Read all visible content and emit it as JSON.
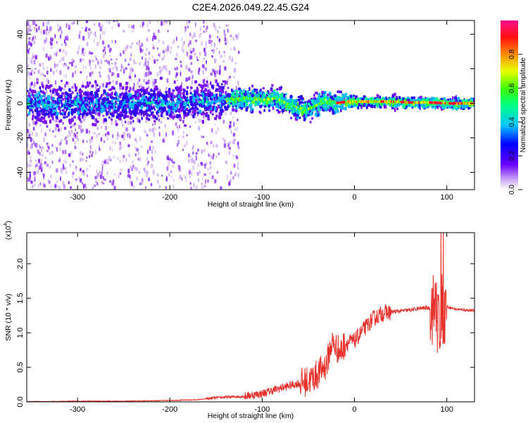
{
  "figure": {
    "title": "C2E4.2026.049.22.45.G24"
  },
  "chart_data": [
    {
      "type": "heatmap",
      "title": "C2E4.2026.049.22.45.G24",
      "xlabel": "Height of straight line (km)",
      "ylabel": "Frequency (Hz)",
      "xlim": [
        -355,
        130
      ],
      "ylim": [
        -50,
        48
      ],
      "xticks": [
        -300,
        -200,
        -100,
        0,
        100
      ],
      "xtick_labels": [
        "-300",
        "-200",
        "-100",
        "0",
        "100"
      ],
      "yticks": [
        -40,
        -20,
        0,
        20,
        40
      ],
      "ytick_labels": [
        "-40",
        "-20",
        "0",
        "20",
        "40"
      ],
      "signal_track": {
        "x": [
          -355,
          -300,
          -250,
          -200,
          -160,
          -140,
          -120,
          -100,
          -85,
          -75,
          -65,
          -55,
          -45,
          -35,
          -25,
          -15,
          -8,
          0,
          20,
          40,
          60,
          80,
          100,
          130
        ],
        "freq": [
          0,
          0,
          0,
          0,
          1,
          2,
          3,
          2,
          3,
          0,
          -2,
          -4,
          -2,
          1,
          0,
          0.5,
          1,
          1,
          1,
          1,
          0.5,
          0.5,
          0,
          0
        ]
      },
      "colorbar": {
        "label": "Normalized spectral amplitude",
        "range": [
          0,
          1
        ],
        "ticks": [
          0.0,
          0.2,
          0.4,
          0.6,
          0.8
        ],
        "tick_labels": [
          "0.0",
          "0.2",
          "0.4",
          "0.6",
          "0.8"
        ]
      }
    },
    {
      "type": "line",
      "xlabel": "Height of straight line (km)",
      "ylabel": "SNR (10 * v/v)",
      "multiplier_label": "(x10",
      "multiplier_exponent": "4",
      "multiplier_close": ")",
      "xlim": [
        -355,
        130
      ],
      "ylim": [
        0,
        2.45
      ],
      "xticks": [
        -300,
        -200,
        -100,
        0,
        100
      ],
      "xtick_labels": [
        "-300",
        "-200",
        "-100",
        "0",
        "100"
      ],
      "yticks": [
        0.0,
        0.5,
        1.0,
        1.5,
        2.0
      ],
      "ytick_labels": [
        "0.0",
        "0.5",
        "1.0",
        "1.5",
        "2.0"
      ],
      "series": [
        {
          "name": "SNR",
          "color": "#e8302a",
          "x": [
            -355,
            -300,
            -250,
            -200,
            -170,
            -150,
            -120,
            -100,
            -80,
            -60,
            -50,
            -40,
            -30,
            -25,
            -20,
            -15,
            -10,
            0,
            10,
            20,
            30,
            40,
            60,
            75,
            85,
            90,
            95,
            100,
            110,
            130
          ],
          "y": [
            0.0,
            0.01,
            0.01,
            0.02,
            0.03,
            0.06,
            0.08,
            0.12,
            0.2,
            0.27,
            0.3,
            0.4,
            0.55,
            0.85,
            0.8,
            0.72,
            0.85,
            0.88,
            1.05,
            1.2,
            1.28,
            1.3,
            1.33,
            1.36,
            1.36,
            1.2,
            1.3,
            1.38,
            1.34,
            1.32
          ]
        }
      ]
    }
  ]
}
